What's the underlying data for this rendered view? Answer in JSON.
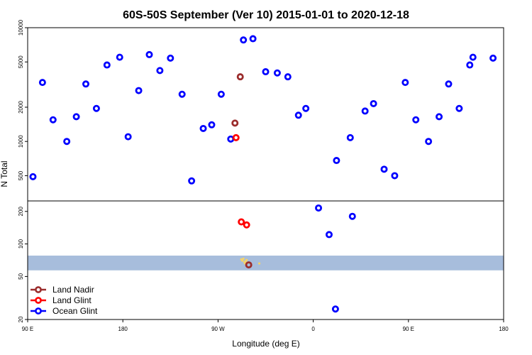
{
  "chart_data": {
    "type": "scatter",
    "title": "60S-50S September (Ver 10)   2015-01-01 to 2020-12-18",
    "xlabel": "Longitude (deg E)",
    "ylabel": "N Total",
    "x_ticks": [
      "90 E",
      "180",
      "90 W",
      "0",
      "90 E",
      "180"
    ],
    "x_tick_lon": [
      90,
      180,
      270,
      360,
      450,
      540
    ],
    "xlim": [
      90,
      540
    ],
    "y_scale": "log",
    "panels": [
      {
        "name": "upper",
        "ylim": [
          300,
          10000
        ],
        "yticks": [
          "500",
          "1000",
          "2000",
          "5000",
          "10000"
        ]
      },
      {
        "name": "lower",
        "ylim": [
          20,
          250
        ],
        "yticks": [
          "20",
          "50",
          "100",
          "200"
        ]
      }
    ],
    "band": {
      "ymin": 57,
      "ymax": 78,
      "color": "#a7bddc"
    },
    "legend": [
      {
        "label": "Land Nadir",
        "color": "#9b2d2d"
      },
      {
        "label": "Land Glint",
        "color": "#ff0000"
      },
      {
        "label": "Ocean Glint",
        "color": "#0000ff"
      }
    ],
    "series": [
      {
        "name": "Ocean Glint",
        "color": "#0000ff",
        "points": [
          [
            95,
            490,
            "upper"
          ],
          [
            104,
            3300,
            "upper"
          ],
          [
            114,
            1550,
            "upper"
          ],
          [
            127,
            1000,
            "upper"
          ],
          [
            136,
            1650,
            "upper"
          ],
          [
            145,
            3200,
            "upper"
          ],
          [
            155,
            1950,
            "upper"
          ],
          [
            165,
            4700,
            "upper"
          ],
          [
            177,
            5500,
            "upper"
          ],
          [
            185,
            1100,
            "upper"
          ],
          [
            195,
            2800,
            "upper"
          ],
          [
            205,
            5800,
            "upper"
          ],
          [
            215,
            4200,
            "upper"
          ],
          [
            225,
            5400,
            "upper"
          ],
          [
            236,
            2600,
            "upper"
          ],
          [
            245,
            450,
            "upper"
          ],
          [
            256,
            1300,
            "upper"
          ],
          [
            264,
            1400,
            "upper"
          ],
          [
            273,
            2600,
            "upper"
          ],
          [
            282,
            1050,
            "upper"
          ],
          [
            294,
            7800,
            "upper"
          ],
          [
            303,
            8000,
            "upper"
          ],
          [
            315,
            4100,
            "upper"
          ],
          [
            326,
            4000,
            "upper"
          ],
          [
            336,
            3700,
            "upper"
          ],
          [
            346,
            1700,
            "upper"
          ],
          [
            353,
            1950,
            "upper"
          ],
          [
            382,
            680,
            "upper"
          ],
          [
            395,
            1080,
            "upper"
          ],
          [
            409,
            1850,
            "upper"
          ],
          [
            417,
            2150,
            "upper"
          ],
          [
            427,
            570,
            "upper"
          ],
          [
            437,
            500,
            "upper"
          ],
          [
            447,
            3300,
            "upper"
          ],
          [
            457,
            1550,
            "upper"
          ],
          [
            469,
            1000,
            "upper"
          ],
          [
            479,
            1650,
            "upper"
          ],
          [
            488,
            3200,
            "upper"
          ],
          [
            498,
            1950,
            "upper"
          ],
          [
            508,
            4700,
            "upper"
          ],
          [
            511,
            5500,
            "upper"
          ],
          [
            530,
            5400,
            "upper"
          ],
          [
            365,
            215,
            "lower"
          ],
          [
            375,
            122,
            "lower"
          ],
          [
            397,
            180,
            "lower"
          ],
          [
            381,
            25,
            "lower"
          ]
        ]
      },
      {
        "name": "Land Glint",
        "color": "#ff0000",
        "points": [
          [
            287,
            1080,
            "upper"
          ],
          [
            292,
            160,
            "lower"
          ],
          [
            297,
            150,
            "lower"
          ]
        ]
      },
      {
        "name": "Land Nadir",
        "color": "#9b2d2d",
        "points": [
          [
            291,
            3700,
            "upper"
          ],
          [
            286,
            1450,
            "upper"
          ],
          [
            299,
            64,
            "lower"
          ]
        ]
      }
    ]
  }
}
